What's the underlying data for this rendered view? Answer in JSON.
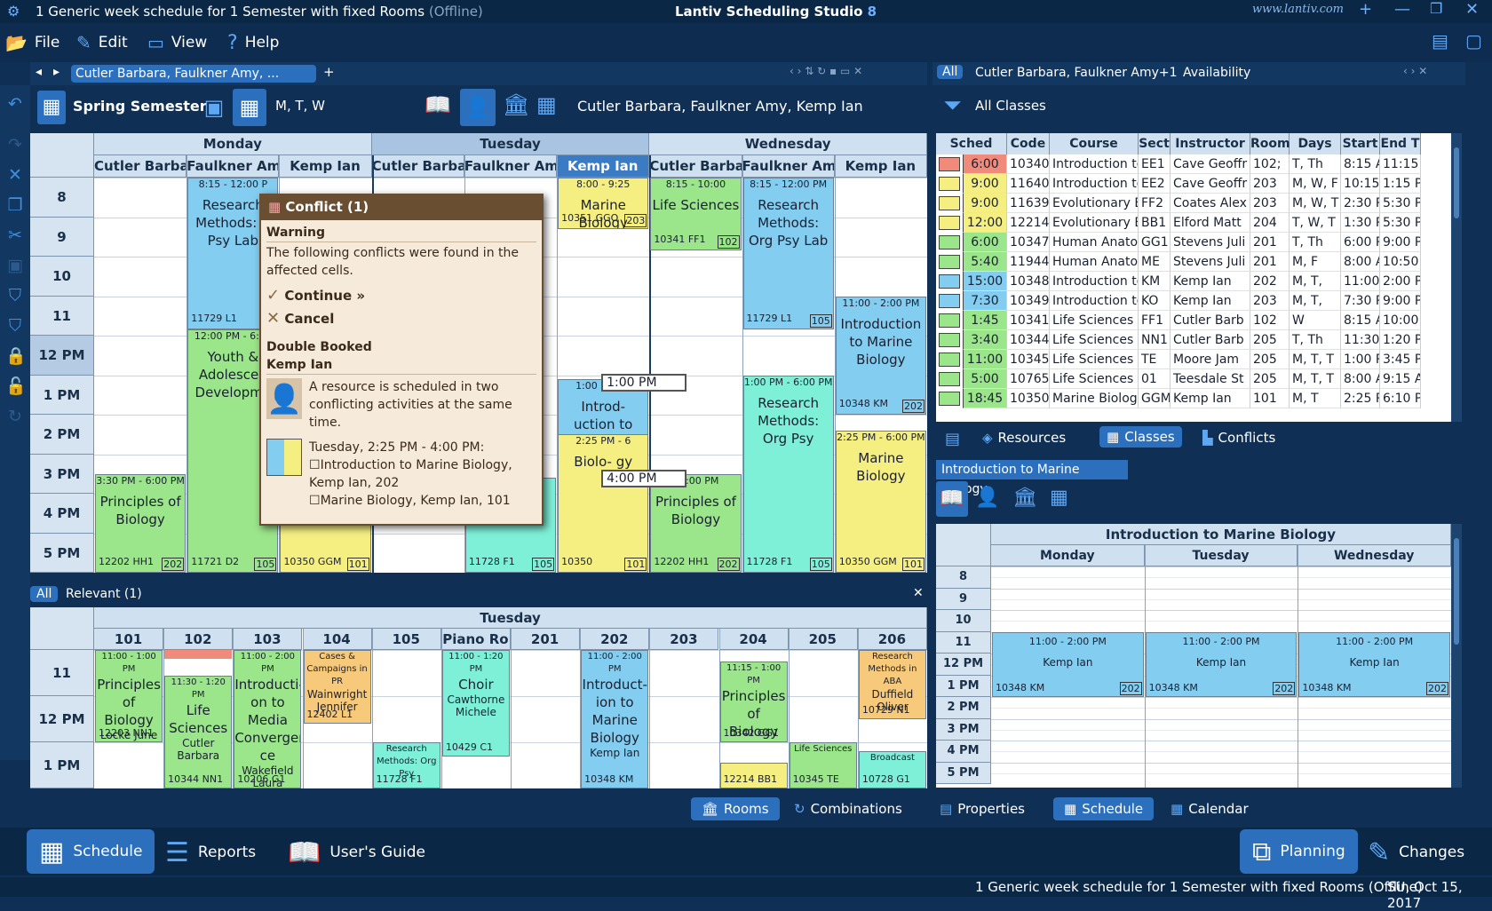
{
  "title": {
    "doc": "1 Generic week schedule for 1 Semester with fixed Rooms",
    "offline": "(Offline)",
    "app": "Lantiv Scheduling Studio",
    "ver": "8",
    "url": "www.lantiv.com"
  },
  "menu": {
    "file": "File",
    "edit": "Edit",
    "view": "View",
    "help": "Help"
  },
  "schedule": {
    "tab": "Cutler Barbara, Faulkner Amy, ...",
    "semester": "Spring Semester",
    "days_label": "M, T, W",
    "resources": "Cutler Barbara, Faulkner Amy, Kemp Ian",
    "days": [
      "Monday",
      "Tuesday",
      "Wednesday"
    ],
    "cols": [
      "Cutler Barba",
      "Faulkner Am",
      "Kemp Ian",
      "Cutler Barba",
      "Faulkner Am",
      "Kemp Ian",
      "Cutler Barba",
      "Faulkner Am",
      "Kemp Ian"
    ],
    "times": [
      "8",
      "9",
      "10",
      "11",
      "12 PM",
      "1 PM",
      "2 PM",
      "3 PM",
      "4 PM",
      "5 PM"
    ],
    "events": [
      {
        "col": 1,
        "top": 0,
        "h": 3.85,
        "color": "#82cdf0",
        "time": "8:15 - 12:00 P",
        "text": "Research Methods: C Psy Lab",
        "code": "11729 L1",
        "room": ""
      },
      {
        "col": 1,
        "top": 3.85,
        "h": 6.15,
        "color": "#9be58a",
        "time": "12:00 PM - 6:00",
        "text": "Youth & Adolescen Developme",
        "code": "11721 D2",
        "room": "105"
      },
      {
        "col": 0,
        "top": 7.5,
        "h": 2.5,
        "color": "#9be58a",
        "time": "3:30 PM - 6:00 PM",
        "text": "Principles of Biology",
        "code": "12202 HH1",
        "room": "202"
      },
      {
        "col": 2,
        "top": 8.6,
        "h": 1.4,
        "color": "#f5ef82",
        "time": "",
        "text": "",
        "code": "10350 GGM",
        "room": "101"
      },
      {
        "col": 5,
        "top": 0,
        "h": 1.3,
        "color": "#f5ef82",
        "time": "8:00 - 9:25",
        "text": "Marine Biology",
        "code": "10351 GGO",
        "room": "203"
      },
      {
        "col": 5,
        "top": 5.1,
        "h": 2.5,
        "color": "#82cdf0",
        "time": "1:00 PM - 4",
        "text": "Introd- uction to Mar- ine Bio logy",
        "code": "10348",
        "room": "202"
      },
      {
        "col": 5,
        "top": 6.5,
        "h": 3.5,
        "color": "#f5ef82",
        "time": "2:25 PM - 6",
        "text": "Biolo- gy",
        "code": "10350",
        "room": "101"
      },
      {
        "col": 4,
        "top": 7.6,
        "h": 2.4,
        "color": "#7ef0d8",
        "time": "",
        "text": "",
        "code": "11728 F1",
        "room": "105"
      },
      {
        "col": 6,
        "top": 0,
        "h": 1.85,
        "color": "#9be58a",
        "time": "8:15 - 10:00",
        "text": "Life Sciences",
        "code": "10341 FF1",
        "room": "102"
      },
      {
        "col": 6,
        "top": 7.5,
        "h": 2.5,
        "color": "#9be58a",
        "time": "- 6:00 PM",
        "text": "Principles of Biology",
        "code": "12202 HH1",
        "room": "202"
      },
      {
        "col": 7,
        "top": 0,
        "h": 3.85,
        "color": "#82cdf0",
        "time": "8:15 - 12:00 PM",
        "text": "Research Methods: Org Psy Lab",
        "code": "11729 L1",
        "room": "105"
      },
      {
        "col": 7,
        "top": 5,
        "h": 5,
        "color": "#7ef0d8",
        "time": "1:00 PM - 6:00 PM",
        "text": "Research Methods: Org Psy",
        "code": "11728 F1",
        "room": "105"
      },
      {
        "col": 8,
        "top": 3,
        "h": 3,
        "color": "#82cdf0",
        "time": "11:00 - 2:00 PM",
        "text": "Introduction to Marine Biology",
        "code": "10348 KM",
        "room": "202"
      },
      {
        "col": 8,
        "top": 6.4,
        "h": 3.6,
        "color": "#f5ef82",
        "time": "2:25 PM - 6:00 PM",
        "text": "Marine Biology",
        "code": "10350 GGM",
        "room": "101"
      }
    ],
    "markers": [
      "1:00 PM",
      "4:00 PM"
    ]
  },
  "conflict": {
    "title": "Conflict (1)",
    "warning": "Warning",
    "msg": "The following conflicts were found in the affected cells.",
    "continue": "Continue",
    "cancel": "Cancel",
    "type": "Double Booked",
    "who": "Kemp Ian",
    "desc": "A resource is scheduled in two conflicting activities at the same time.",
    "when": "Tuesday, 2:25 PM - 4:00 PM:",
    "items": [
      "Introduction to Marine Biology, Kemp Ian, 202",
      "Marine Biology, Kemp Ian, 101"
    ]
  },
  "rooms": {
    "filter_all": "All",
    "filter_rel": "Relevant (1)",
    "day": "Tuesday",
    "cols": [
      "101",
      "102",
      "103",
      "104",
      "105",
      "Piano Ro",
      "201",
      "202",
      "203",
      "204",
      "205",
      "206"
    ],
    "times": [
      "11",
      "12 PM",
      "1 PM"
    ],
    "events": [
      {
        "col": 0,
        "top": 0,
        "h": 2,
        "color": "#9be58a",
        "time": "11:00 - 1:00 PM",
        "text": "Principles of Biology",
        "sub": "Locke June",
        "code": "12203 NN1"
      },
      {
        "col": 1,
        "top": 0.55,
        "h": 2.45,
        "color": "#9be58a",
        "time": "11:30 - 1:20 PM",
        "text": "Life Sciences",
        "sub": "Cutler Barbara",
        "code": "10344 NN1"
      },
      {
        "col": 2,
        "top": 0,
        "h": 3,
        "color": "#9be58a",
        "time": "11:00 - 2:00 PM",
        "text": "Introducti- on to Media Convergen- ce",
        "sub": "Wakefield Laura",
        "code": "10206 G1"
      },
      {
        "col": 3,
        "top": 0,
        "h": 1.6,
        "color": "#f7c97a",
        "time": "Cases & Campaigns in PR",
        "text": "",
        "sub": "Wainwright Jennifer",
        "code": "12402 L1"
      },
      {
        "col": 4,
        "top": 2,
        "h": 1,
        "color": "#7ef0d8",
        "time": "Research Methods: Org Psy",
        "text": "",
        "sub": "",
        "code": "11728 F1"
      },
      {
        "col": 5,
        "top": 0,
        "h": 2.3,
        "color": "#7ef0d8",
        "time": "11:00 - 1:20 PM",
        "text": "Choir",
        "sub": "Cawthorne Michele",
        "code": "10429 C1"
      },
      {
        "col": 7,
        "top": 0,
        "h": 3,
        "color": "#82cdf0",
        "time": "11:00 - 2:00 PM",
        "text": "Introduct- ion to Marine Biology",
        "sub": "Kemp Ian",
        "code": "10348 KM"
      },
      {
        "col": 9,
        "top": 0.25,
        "h": 1.75,
        "color": "#9be58a",
        "time": "11:15 - 1:00 PM",
        "text": "Principles of Biology",
        "sub": "Moore James",
        "code": "10342 GG1"
      },
      {
        "col": 9,
        "top": 2.45,
        "h": 0.55,
        "color": "#f5ef82",
        "time": "",
        "text": "",
        "sub": "",
        "code": "12214 BB1"
      },
      {
        "col": 10,
        "top": 2,
        "h": 1,
        "color": "#9be58a",
        "time": "Life Sciences",
        "text": "",
        "sub": "",
        "code": "10345 TE"
      },
      {
        "col": 11,
        "top": 0,
        "h": 1.5,
        "color": "#f7c97a",
        "time": "Research Methods in ABA",
        "text": "",
        "sub": "Duffield Oliver",
        "code": "10729 N1"
      },
      {
        "col": 11,
        "top": 2.2,
        "h": 0.8,
        "color": "#7ef0d8",
        "time": "Broadcast",
        "text": "",
        "sub": "",
        "code": "10728 G1"
      }
    ]
  },
  "classes": {
    "tab_all": "All",
    "tab_sel": "Cutler Barbara, Faulkner Amy+1",
    "tab_avail": "Availability",
    "filter": "All Classes",
    "headers": [
      "Sched",
      "Code",
      "Course",
      "Sect",
      "Instructor",
      "Room",
      "Days",
      "Start",
      "End T"
    ],
    "rows": [
      {
        "color": "#f08a7a",
        "sched": "6:00",
        "code": "10340",
        "course": "Introduction to",
        "sect": "EE1",
        "instr": "Cave Geoffr",
        "room": "102;",
        "days": "T, Th",
        "start": "8:15 A",
        "end": "11:15"
      },
      {
        "color": "#f5ef82",
        "sched": "9:00",
        "code": "11640",
        "course": "Introduction to",
        "sect": "EE2",
        "instr": "Cave Geoffr",
        "room": "203",
        "days": "M, W, F",
        "start": "10:15",
        "end": "1:15 P"
      },
      {
        "color": "#f5ef82",
        "sched": "9:00",
        "code": "11639",
        "course": "Evolutionary Bi",
        "sect": "FF2",
        "instr": "Coates Alex",
        "room": "203",
        "days": "M, W, T",
        "start": "2:30 P",
        "end": "5:30 P"
      },
      {
        "color": "#f5ef82",
        "sched": "12:00",
        "code": "12214",
        "course": "Evolutionary Bi",
        "sect": "BB1",
        "instr": "Elford Matt",
        "room": "204",
        "days": "T, W, T",
        "start": "1:30 P",
        "end": "5:30 P"
      },
      {
        "color": "#9be58a",
        "sched": "6:00",
        "code": "10347",
        "course": "Human Anato",
        "sect": "GG1",
        "instr": "Stevens Juli",
        "room": "201",
        "days": "T, Th",
        "start": "6:00 P",
        "end": "9:00 P"
      },
      {
        "color": "#9be58a",
        "sched": "5:40",
        "code": "11944",
        "course": "Human Anato",
        "sect": "ME",
        "instr": "Stevens Juli",
        "room": "201",
        "days": "M, F",
        "start": "8:00 A",
        "end": "10:50"
      },
      {
        "color": "#82cdf0",
        "sched": "15:00",
        "code": "10348",
        "course": "Introduction to",
        "sect": "KM",
        "instr": "Kemp Ian",
        "room": "202",
        "days": "M, T,",
        "start": "11:00",
        "end": "2:00 P"
      },
      {
        "color": "#82cdf0",
        "sched": "7:30",
        "code": "10349",
        "course": "Introduction to",
        "sect": "KO",
        "instr": "Kemp Ian",
        "room": "203",
        "days": "M, T,",
        "start": "7:30 P",
        "end": "9:00 P"
      },
      {
        "color": "#9be58a",
        "sched": "1:45",
        "code": "10341",
        "course": "Life Sciences",
        "sect": "FF1",
        "instr": "Cutler Barb",
        "room": "102",
        "days": "W",
        "start": "8:15 A",
        "end": "10:00"
      },
      {
        "color": "#9be58a",
        "sched": "3:40",
        "code": "10344",
        "course": "Life Sciences",
        "sect": "NN1",
        "instr": "Cutler Barb",
        "room": "205",
        "days": "T, Th",
        "start": "11:30",
        "end": "1:20 P"
      },
      {
        "color": "#9be58a",
        "sched": "11:00",
        "code": "10345",
        "course": "Life Sciences",
        "sect": "TE",
        "instr": "Moore Jam",
        "room": "205",
        "days": "M, T, T",
        "start": "1:00 P",
        "end": "3:45 P"
      },
      {
        "color": "#9be58a",
        "sched": "5:00",
        "code": "10765",
        "course": "Life Sciences",
        "sect": "01",
        "instr": "Teesdale St",
        "room": "205",
        "days": "M, T, T",
        "start": "8:00 A",
        "end": "9:15 A"
      },
      {
        "color": "#9be58a",
        "sched": "18:45",
        "code": "10350",
        "course": "Marine Biology",
        "sect": "GGM",
        "instr": "Kemp Ian",
        "room": "101",
        "days": "M, T",
        "start": "2:25 P",
        "end": "6:10 P"
      }
    ],
    "tabs": [
      "Resources",
      "Classes",
      "Conflicts"
    ]
  },
  "detail": {
    "tab": "Introduction to Marine Biology",
    "title": "Introduction to Marine Biology",
    "days": [
      "Monday",
      "Tuesday",
      "Wednesday"
    ],
    "times": [
      "8",
      "9",
      "10",
      "11",
      "12 PM",
      "1 PM",
      "2 PM",
      "3 PM",
      "4 PM",
      "5 PM"
    ],
    "ev_time": "11:00 - 2:00 PM",
    "ev_name": "Kemp Ian",
    "ev_code": "10348 KM",
    "ev_room": "202"
  },
  "lowertabs": {
    "rooms": "Rooms",
    "combinations": "Combinations",
    "properties": "Properties",
    "schedule": "Schedule",
    "calendar": "Calendar"
  },
  "bottom": {
    "schedule": "Schedule",
    "reports": "Reports",
    "guide": "User's Guide",
    "planning": "Planning",
    "changes": "Changes"
  },
  "status": {
    "text": "1 Generic week schedule for 1 Semester with fixed Rooms (Offline)",
    "date": "SU, Oct 15, 2017"
  }
}
